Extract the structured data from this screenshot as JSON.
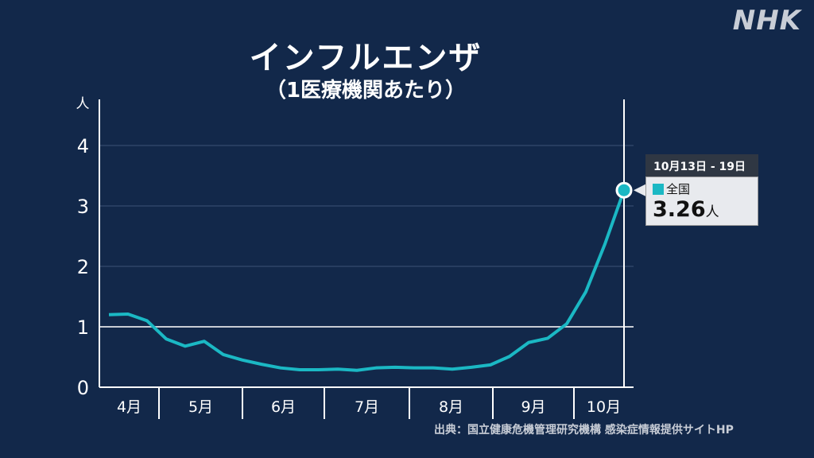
{
  "header": {
    "title": "インフルエンザ",
    "subtitle": "（1医療機関あたり）",
    "logo": "NHK"
  },
  "source": "出典：国立健康危機管理研究機構 感染症情報提供サイトHP",
  "tooltip": {
    "date": "10月13日 - 19日",
    "series": "全国",
    "value": "3.26",
    "unit": "人"
  },
  "chart_data": {
    "type": "line",
    "ylabel": "人",
    "ylim": [
      0,
      4.2
    ],
    "yticks": [
      "0",
      "1",
      "2",
      "3",
      "4"
    ],
    "month_labels": [
      "4月",
      "5月",
      "6月",
      "7月",
      "8月",
      "9月",
      "10月"
    ],
    "series": [
      {
        "color": "#1bb8c4",
        "values": [
          1.2,
          1.21,
          1.1,
          0.8,
          0.68,
          0.76,
          0.54,
          0.45,
          0.38,
          0.32,
          0.29,
          0.29,
          0.3,
          0.28,
          0.32,
          0.33,
          0.32,
          0.32,
          0.3,
          0.33,
          0.37,
          0.51,
          0.74,
          0.81,
          1.05,
          1.58,
          2.37,
          3.26
        ]
      }
    ],
    "reference_line": 1,
    "grid": true
  }
}
